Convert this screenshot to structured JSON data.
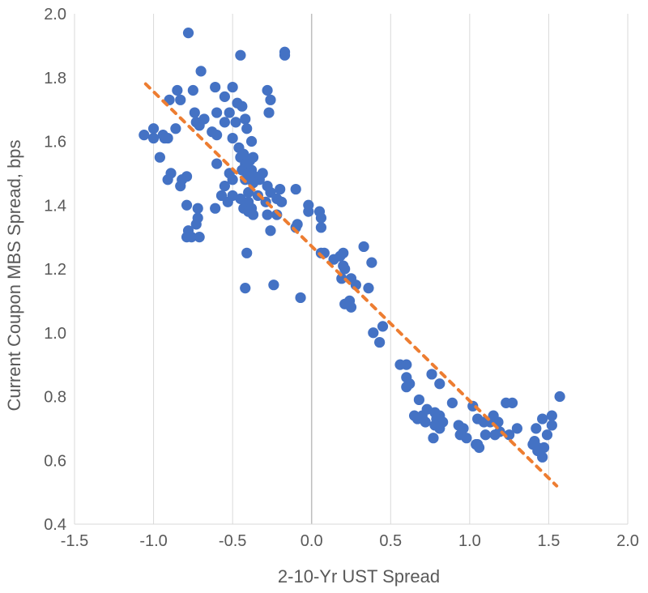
{
  "chart_data": {
    "type": "scatter",
    "title": "",
    "xlabel": "2-10-Yr UST Spread",
    "ylabel": "Current Coupon MBS Spread, bps",
    "xlim": [
      -1.5,
      2.0
    ],
    "ylim": [
      0.4,
      2.0
    ],
    "x_ticks": [
      "-1.5",
      "-1.0",
      "-0.5",
      "0.0",
      "0.5",
      "1.0",
      "1.5",
      "2.0"
    ],
    "y_ticks": [
      "0.4",
      "0.6",
      "0.8",
      "1.0",
      "1.2",
      "1.4",
      "1.6",
      "1.8",
      "2.0"
    ],
    "grid": "vertical",
    "colors": {
      "points": "#4472c4",
      "trendline": "#ed7d31"
    },
    "trendline": {
      "style": "dashed",
      "x": [
        -1.05,
        1.55
      ],
      "y": [
        1.78,
        0.52
      ]
    },
    "points": [
      [
        -0.78,
        1.94
      ],
      [
        -0.45,
        1.87
      ],
      [
        -0.17,
        1.88
      ],
      [
        -0.17,
        1.87
      ],
      [
        -0.7,
        1.82
      ],
      [
        -0.5,
        1.77
      ],
      [
        -0.61,
        1.77
      ],
      [
        -0.85,
        1.76
      ],
      [
        -0.75,
        1.76
      ],
      [
        -0.28,
        1.76
      ],
      [
        -0.55,
        1.74
      ],
      [
        -0.26,
        1.73
      ],
      [
        -0.9,
        1.73
      ],
      [
        -0.83,
        1.73
      ],
      [
        -0.47,
        1.72
      ],
      [
        -0.44,
        1.71
      ],
      [
        -0.74,
        1.69
      ],
      [
        -0.6,
        1.69
      ],
      [
        -0.52,
        1.69
      ],
      [
        -0.27,
        1.69
      ],
      [
        -0.42,
        1.67
      ],
      [
        -0.68,
        1.67
      ],
      [
        -0.73,
        1.66
      ],
      [
        -0.55,
        1.66
      ],
      [
        -0.48,
        1.66
      ],
      [
        -0.71,
        1.65
      ],
      [
        -0.86,
        1.64
      ],
      [
        -0.41,
        1.64
      ],
      [
        -1.0,
        1.64
      ],
      [
        -0.63,
        1.63
      ],
      [
        -0.6,
        1.62
      ],
      [
        -0.94,
        1.62
      ],
      [
        -1.06,
        1.62
      ],
      [
        -1.0,
        1.61
      ],
      [
        -0.93,
        1.61
      ],
      [
        -0.91,
        1.61
      ],
      [
        -0.5,
        1.61
      ],
      [
        -0.38,
        1.6
      ],
      [
        -0.46,
        1.58
      ],
      [
        -0.43,
        1.56
      ],
      [
        -0.37,
        1.55
      ],
      [
        -0.45,
        1.55
      ],
      [
        -0.96,
        1.55
      ],
      [
        -0.39,
        1.54
      ],
      [
        -0.42,
        1.53
      ],
      [
        -0.6,
        1.53
      ],
      [
        -0.44,
        1.51
      ],
      [
        -0.38,
        1.51
      ],
      [
        -0.31,
        1.5
      ],
      [
        -0.4,
        1.5
      ],
      [
        -0.52,
        1.5
      ],
      [
        -0.89,
        1.5
      ],
      [
        -0.36,
        1.49
      ],
      [
        -0.33,
        1.48
      ],
      [
        -0.42,
        1.48
      ],
      [
        -0.5,
        1.48
      ],
      [
        -0.79,
        1.49
      ],
      [
        -0.82,
        1.48
      ],
      [
        -0.91,
        1.48
      ],
      [
        -0.37,
        1.47
      ],
      [
        -0.28,
        1.46
      ],
      [
        -0.83,
        1.46
      ],
      [
        -0.55,
        1.46
      ],
      [
        -0.2,
        1.45
      ],
      [
        -0.1,
        1.45
      ],
      [
        -0.4,
        1.44
      ],
      [
        -0.26,
        1.44
      ],
      [
        -0.34,
        1.43
      ],
      [
        -0.5,
        1.43
      ],
      [
        -0.57,
        1.43
      ],
      [
        -0.45,
        1.42
      ],
      [
        -0.22,
        1.42
      ],
      [
        -0.29,
        1.41
      ],
      [
        -0.53,
        1.41
      ],
      [
        -0.4,
        1.41
      ],
      [
        -0.19,
        1.41
      ],
      [
        -0.79,
        1.4
      ],
      [
        -0.02,
        1.4
      ],
      [
        -0.72,
        1.39
      ],
      [
        -0.43,
        1.39
      ],
      [
        -0.61,
        1.39
      ],
      [
        -0.38,
        1.39
      ],
      [
        -0.4,
        1.38
      ],
      [
        -0.02,
        1.38
      ],
      [
        0.05,
        1.38
      ],
      [
        -0.28,
        1.37
      ],
      [
        -0.37,
        1.37
      ],
      [
        -0.22,
        1.37
      ],
      [
        0.06,
        1.36
      ],
      [
        -0.72,
        1.36
      ],
      [
        -0.73,
        1.34
      ],
      [
        -0.09,
        1.34
      ],
      [
        -0.1,
        1.33
      ],
      [
        0.06,
        1.33
      ],
      [
        -0.78,
        1.32
      ],
      [
        -0.26,
        1.32
      ],
      [
        -0.79,
        1.3
      ],
      [
        -0.76,
        1.3
      ],
      [
        -0.71,
        1.3
      ],
      [
        0.33,
        1.27
      ],
      [
        0.08,
        1.25
      ],
      [
        0.06,
        1.25
      ],
      [
        -0.41,
        1.25
      ],
      [
        0.2,
        1.25
      ],
      [
        0.18,
        1.24
      ],
      [
        0.14,
        1.23
      ],
      [
        0.38,
        1.22
      ],
      [
        0.2,
        1.21
      ],
      [
        0.21,
        1.2
      ],
      [
        0.25,
        1.17
      ],
      [
        0.19,
        1.17
      ],
      [
        0.28,
        1.15
      ],
      [
        -0.24,
        1.15
      ],
      [
        0.36,
        1.14
      ],
      [
        -0.42,
        1.14
      ],
      [
        -0.07,
        1.11
      ],
      [
        0.24,
        1.1
      ],
      [
        0.21,
        1.09
      ],
      [
        0.25,
        1.08
      ],
      [
        0.45,
        1.02
      ],
      [
        0.39,
        1.0
      ],
      [
        0.43,
        0.97
      ],
      [
        0.56,
        0.9
      ],
      [
        0.6,
        0.9
      ],
      [
        0.6,
        0.86
      ],
      [
        0.62,
        0.84
      ],
      [
        0.6,
        0.83
      ],
      [
        0.76,
        0.87
      ],
      [
        0.81,
        0.84
      ],
      [
        1.57,
        0.8
      ],
      [
        0.68,
        0.79
      ],
      [
        1.23,
        0.78
      ],
      [
        1.27,
        0.78
      ],
      [
        0.89,
        0.78
      ],
      [
        1.02,
        0.77
      ],
      [
        0.73,
        0.76
      ],
      [
        0.78,
        0.75
      ],
      [
        0.65,
        0.74
      ],
      [
        0.7,
        0.74
      ],
      [
        0.81,
        0.74
      ],
      [
        1.15,
        0.74
      ],
      [
        1.52,
        0.74
      ],
      [
        1.46,
        0.73
      ],
      [
        0.67,
        0.73
      ],
      [
        0.72,
        0.72
      ],
      [
        0.79,
        0.73
      ],
      [
        0.83,
        0.72
      ],
      [
        1.05,
        0.73
      ],
      [
        1.09,
        0.72
      ],
      [
        1.18,
        0.72
      ],
      [
        1.13,
        0.72
      ],
      [
        0.78,
        0.71
      ],
      [
        0.93,
        0.71
      ],
      [
        0.96,
        0.7
      ],
      [
        1.3,
        0.7
      ],
      [
        1.52,
        0.71
      ],
      [
        0.81,
        0.7
      ],
      [
        1.42,
        0.7
      ],
      [
        1.19,
        0.69
      ],
      [
        0.94,
        0.68
      ],
      [
        1.1,
        0.68
      ],
      [
        1.16,
        0.68
      ],
      [
        1.25,
        0.68
      ],
      [
        1.49,
        0.68
      ],
      [
        0.77,
        0.67
      ],
      [
        0.98,
        0.67
      ],
      [
        1.41,
        0.66
      ],
      [
        1.04,
        0.65
      ],
      [
        1.05,
        0.65
      ],
      [
        1.4,
        0.65
      ],
      [
        1.43,
        0.64
      ],
      [
        1.47,
        0.64
      ],
      [
        1.06,
        0.64
      ],
      [
        1.43,
        0.63
      ],
      [
        1.46,
        0.61
      ]
    ]
  }
}
